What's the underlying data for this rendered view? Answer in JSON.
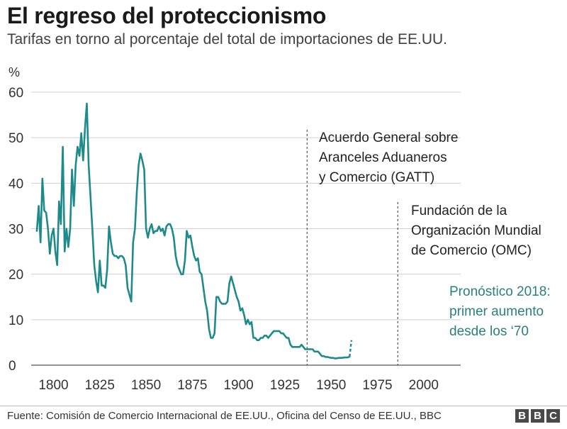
{
  "header": {
    "title": "El regreso del proteccionismo",
    "subtitle": "Tarifas en torno al porcentaje del total de importaciones de EE.UU."
  },
  "footer": {
    "source": "Fuente: Comisión de Comercio Internacional de EE.UU., Oficina del Censo de EE.UU., BBC",
    "logo_letters": [
      "B",
      "B",
      "C"
    ]
  },
  "colors": {
    "line": "#1f8a8a",
    "grid": "#d0d0d0",
    "axis": "#555555"
  },
  "chart_data": {
    "type": "line",
    "title": "El regreso del proteccionismo",
    "ylabel": "%",
    "xlim": [
      1791,
      2020
    ],
    "ylim": [
      0,
      60
    ],
    "yticks": [
      0,
      10,
      20,
      30,
      40,
      50,
      60
    ],
    "xticks": [
      1800,
      1825,
      1850,
      1875,
      1900,
      1925,
      1950,
      1975,
      2000
    ],
    "grid": true,
    "series": [
      {
        "values": [
          [
            1791,
            29.5
          ],
          [
            1792,
            35
          ],
          [
            1793,
            27
          ],
          [
            1794,
            41
          ],
          [
            1795,
            34
          ],
          [
            1796,
            33.5
          ],
          [
            1797,
            30
          ],
          [
            1798,
            24.5
          ],
          [
            1799,
            28.5
          ],
          [
            1800,
            30
          ],
          [
            1801,
            25
          ],
          [
            1802,
            22
          ],
          [
            1803,
            36
          ],
          [
            1804,
            31
          ],
          [
            1805,
            48
          ],
          [
            1806,
            25
          ],
          [
            1807,
            30
          ],
          [
            1808,
            26
          ],
          [
            1809,
            30
          ],
          [
            1810,
            43
          ],
          [
            1811,
            35
          ],
          [
            1812,
            44
          ],
          [
            1813,
            48
          ],
          [
            1814,
            46
          ],
          [
            1815,
            51
          ],
          [
            1816,
            45
          ],
          [
            1817,
            52
          ],
          [
            1818,
            57.5
          ],
          [
            1819,
            44
          ],
          [
            1820,
            37
          ],
          [
            1821,
            30
          ],
          [
            1822,
            22
          ],
          [
            1823,
            18.5
          ],
          [
            1824,
            16
          ],
          [
            1825,
            23
          ],
          [
            1826,
            17.5
          ],
          [
            1827,
            17.5
          ],
          [
            1828,
            17
          ],
          [
            1829,
            21
          ],
          [
            1830,
            30.5
          ],
          [
            1831,
            27
          ],
          [
            1832,
            24.5
          ],
          [
            1833,
            24
          ],
          [
            1834,
            24
          ],
          [
            1835,
            23.5
          ],
          [
            1836,
            24
          ],
          [
            1837,
            24
          ],
          [
            1838,
            23.5
          ],
          [
            1839,
            22
          ],
          [
            1840,
            17
          ],
          [
            1841,
            15.5
          ],
          [
            1842,
            14
          ],
          [
            1843,
            27
          ],
          [
            1844,
            30
          ],
          [
            1845,
            38
          ],
          [
            1846,
            44
          ],
          [
            1847,
            46.5
          ],
          [
            1848,
            45
          ],
          [
            1849,
            43
          ],
          [
            1850,
            30
          ],
          [
            1851,
            28
          ],
          [
            1852,
            30
          ],
          [
            1853,
            31
          ],
          [
            1854,
            29
          ],
          [
            1855,
            29.5
          ],
          [
            1856,
            29.5
          ],
          [
            1857,
            30.5
          ],
          [
            1858,
            29.5
          ],
          [
            1859,
            30
          ],
          [
            1860,
            28.5
          ],
          [
            1861,
            30.5
          ],
          [
            1862,
            31
          ],
          [
            1863,
            31
          ],
          [
            1864,
            30
          ],
          [
            1865,
            28
          ],
          [
            1866,
            24
          ],
          [
            1867,
            22
          ],
          [
            1868,
            21
          ],
          [
            1869,
            20
          ],
          [
            1870,
            20
          ],
          [
            1871,
            23
          ],
          [
            1872,
            29.5
          ],
          [
            1873,
            28
          ],
          [
            1874,
            28.5
          ],
          [
            1875,
            26
          ],
          [
            1876,
            24
          ],
          [
            1877,
            23
          ],
          [
            1878,
            23.5
          ],
          [
            1879,
            20.5
          ],
          [
            1880,
            20
          ],
          [
            1881,
            17
          ],
          [
            1882,
            14
          ],
          [
            1883,
            12
          ],
          [
            1884,
            8
          ],
          [
            1885,
            6
          ],
          [
            1886,
            6
          ],
          [
            1887,
            7
          ],
          [
            1888,
            15
          ],
          [
            1889,
            15
          ],
          [
            1890,
            14
          ],
          [
            1891,
            13.5
          ],
          [
            1892,
            13.5
          ],
          [
            1893,
            13.5
          ],
          [
            1894,
            14
          ],
          [
            1895,
            18
          ],
          [
            1896,
            19.5
          ],
          [
            1897,
            18
          ],
          [
            1898,
            16.5
          ],
          [
            1899,
            15
          ],
          [
            1900,
            14
          ],
          [
            1901,
            12
          ],
          [
            1902,
            12.5
          ],
          [
            1903,
            11
          ],
          [
            1904,
            9
          ],
          [
            1905,
            10
          ],
          [
            1906,
            9
          ],
          [
            1907,
            9.5
          ],
          [
            1908,
            6
          ],
          [
            1909,
            6
          ],
          [
            1910,
            5.5
          ],
          [
            1911,
            5.5
          ],
          [
            1912,
            6
          ],
          [
            1913,
            6
          ],
          [
            1914,
            6.5
          ],
          [
            1915,
            6.5
          ],
          [
            1916,
            6
          ],
          [
            1917,
            6.5
          ],
          [
            1918,
            7
          ],
          [
            1919,
            7.5
          ],
          [
            1920,
            7.5
          ],
          [
            1921,
            7.5
          ],
          [
            1922,
            7.5
          ],
          [
            1923,
            7
          ],
          [
            1924,
            7
          ],
          [
            1925,
            6.5
          ],
          [
            1926,
            6
          ],
          [
            1927,
            6
          ],
          [
            1928,
            4.5
          ],
          [
            1929,
            4
          ],
          [
            1930,
            4
          ],
          [
            1931,
            4
          ],
          [
            1932,
            4
          ],
          [
            1933,
            4
          ],
          [
            1934,
            4.5
          ],
          [
            1935,
            4
          ],
          [
            1936,
            3.5
          ],
          [
            1937,
            3.5
          ],
          [
            1938,
            3.5
          ],
          [
            1939,
            3.5
          ],
          [
            1940,
            3.5
          ],
          [
            1941,
            3
          ],
          [
            1942,
            3
          ],
          [
            1943,
            3
          ],
          [
            1944,
            2.5
          ],
          [
            1945,
            2
          ],
          [
            1946,
            2
          ],
          [
            1947,
            1.8
          ],
          [
            1948,
            1.8
          ],
          [
            1949,
            1.7
          ],
          [
            1950,
            1.6
          ],
          [
            1951,
            1.6
          ],
          [
            1952,
            1.5
          ],
          [
            1953,
            1.5
          ],
          [
            1954,
            1.6
          ],
          [
            1955,
            1.6
          ],
          [
            1956,
            1.6
          ],
          [
            1957,
            1.7
          ],
          [
            1958,
            1.7
          ],
          [
            1959,
            1.7
          ],
          [
            1960,
            1.9
          ]
        ],
        "forecast": [
          [
            1960,
            1.9
          ],
          [
            1961,
            5.5
          ]
        ]
      }
    ],
    "annotations": [
      {
        "x": 1937,
        "lines": [
          "Acuerdo General sobre",
          "Aranceles Aduaneros",
          "y Comercio (GATT)"
        ]
      },
      {
        "x": 1986,
        "lines": [
          "Fundación de la",
          "Organización Mundial",
          "de Comercio (OMC)"
        ]
      },
      {
        "x": 2018,
        "lines": [
          "Pronóstico 2018:",
          "primer aumento",
          "desde los ‘70"
        ]
      }
    ]
  }
}
